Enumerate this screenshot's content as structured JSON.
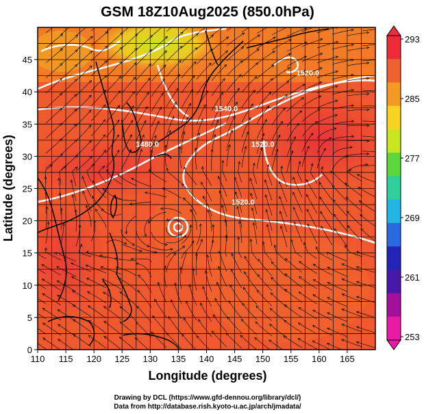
{
  "title": "GSM 18Z10Aug2025 (850.0hPa)",
  "xlabel": "Longitude (degrees)",
  "ylabel": "Latitude  (degrees)",
  "x_ticks": [
    "110",
    "115",
    "120",
    "125",
    "130",
    "135",
    "140",
    "145",
    "150",
    "155",
    "160",
    "165"
  ],
  "y_ticks": [
    "0",
    "5",
    "10",
    "15",
    "20",
    "25",
    "30",
    "35",
    "40",
    "45"
  ],
  "colorbar": {
    "ticks": [
      "293",
      "285",
      "277",
      "269",
      "261",
      "253"
    ],
    "colors": [
      "#ee2a3a",
      "#f06030",
      "#f49a22",
      "#f7d21e",
      "#c8e620",
      "#5cd83c",
      "#2ecf9a",
      "#22b6e6",
      "#2a6ae0",
      "#2424b8",
      "#4818a8",
      "#a4109c",
      "#e81aa6"
    ]
  },
  "contour_labels": [
    {
      "text": "1520.0",
      "lon": 158,
      "lat": 42.5
    },
    {
      "text": "1540.0",
      "lon": 143.5,
      "lat": 37
    },
    {
      "text": "1480.0",
      "lon": 129.5,
      "lat": 31.5
    },
    {
      "text": "1520.0",
      "lon": 146.5,
      "lat": 22.5
    },
    {
      "text": "1520.0",
      "lon": 150,
      "lat": 31.5
    }
  ],
  "credits": {
    "line1": "Drawing by DCL (https://www.gfd-dennou.org/library/dcl/)",
    "line2": "Data from http://database.rish.kyoto-u.ac.jp/arch/jmadata/"
  }
}
